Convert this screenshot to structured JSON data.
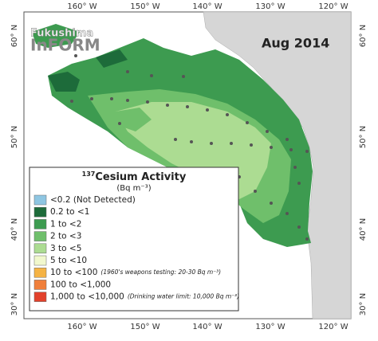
{
  "map": {
    "logo": {
      "top": "Fukushima",
      "bottom": "InFORM"
    },
    "date": "Aug 2014",
    "lon_labels": [
      "160° W",
      "150° W",
      "140° W",
      "130° W",
      "120° W"
    ],
    "lat_labels": [
      "60° N",
      "50° N",
      "40° N",
      "30° N"
    ]
  },
  "legend": {
    "title_superscript": "137",
    "title": "Cesium Activity",
    "units": "(Bq m⁻³)",
    "items": [
      {
        "label": "<0.2 (Not Detected)",
        "color": "#8ec6e2"
      },
      {
        "label": "0.2 to <1",
        "color": "#1d6b3a"
      },
      {
        "label": "1 to <2",
        "color": "#3d9b50"
      },
      {
        "label": "2 to <3",
        "color": "#6fbf6b"
      },
      {
        "label": "3 to <5",
        "color": "#acdc92"
      },
      {
        "label": "5 to <10",
        "color": "#f1f8cd"
      },
      {
        "label": "10 to <100",
        "color": "#f5b344",
        "note": "(1960's weapons testing: 20-30 Bq m⁻³)"
      },
      {
        "label": "100 to <1,000",
        "color": "#f07f3a"
      },
      {
        "label": "1,000 to <10,000",
        "color": "#e2412b",
        "note": "(Drinking water limit: 10,000 Bq m⁻³)"
      }
    ]
  }
}
